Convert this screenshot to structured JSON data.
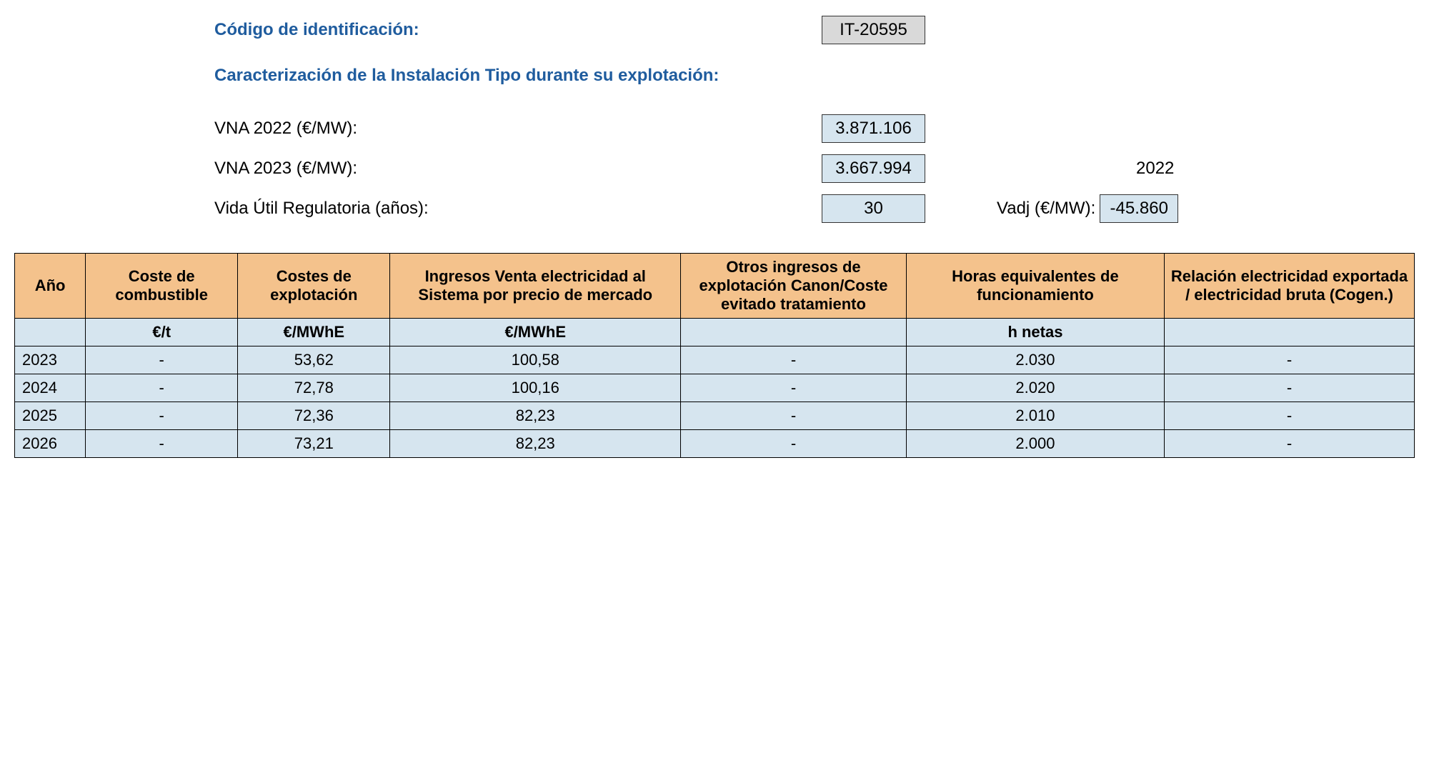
{
  "header": {
    "id_label": "Código de identificación:",
    "id_value": "IT-20595",
    "caracterizacion_label": "Caracterización de la Instalación Tipo durante su explotación:",
    "rows": [
      {
        "label": "VNA 2022 (€/MW):",
        "value": "3.871.106"
      },
      {
        "label": "VNA 2023 (€/MW):",
        "value": "3.667.994"
      },
      {
        "label": "Vida Útil Regulatoria (años):",
        "value": "30"
      }
    ],
    "side_year": "2022",
    "vadj_label": "Vadj (€/MW):",
    "vadj_value": "-45.860"
  },
  "table": {
    "columns": [
      "Año",
      "Coste de combustible",
      "Costes de explotación",
      "Ingresos Venta electricidad al Sistema por precio de mercado",
      "Otros ingresos de explotación Canon/Coste evitado tratamiento",
      "Horas equivalentes de funcionamiento",
      "Relación electricidad exportada / electricidad bruta\n(Cogen.)"
    ],
    "units": [
      "",
      "€/t",
      "€/MWhE",
      "€/MWhE",
      "",
      "h netas",
      ""
    ],
    "rows": [
      [
        "2023",
        "-",
        "53,62",
        "100,58",
        "-",
        "2.030",
        "-"
      ],
      [
        "2024",
        "-",
        "72,78",
        "100,16",
        "-",
        "2.020",
        "-"
      ],
      [
        "2025",
        "-",
        "72,36",
        "82,23",
        "-",
        "2.010",
        "-"
      ],
      [
        "2026",
        "-",
        "73,21",
        "82,23",
        "-",
        "2.000",
        "-"
      ]
    ],
    "col_classes": [
      "col-year",
      "col-fuel",
      "col-opex",
      "col-rev",
      "col-other",
      "col-hours",
      "col-ratio"
    ]
  },
  "colors": {
    "header_blue_text": "#1f5c9e",
    "box_gray_bg": "#d9d9d9",
    "box_blue_bg": "#d6e5ef",
    "table_header_bg": "#f4c28c",
    "table_body_bg": "#d6e5ef",
    "border": "#000000"
  }
}
